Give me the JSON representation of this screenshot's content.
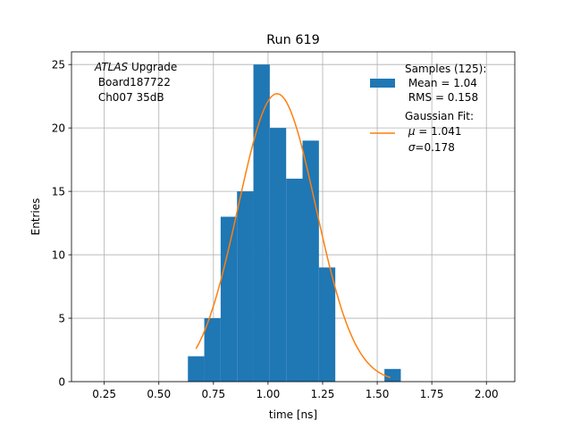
{
  "chart_data": {
    "type": "bar",
    "title": "Run 619",
    "xlabel": "time [ns]",
    "ylabel": "Entries",
    "xlim": [
      0.1,
      2.13
    ],
    "ylim": [
      0,
      26
    ],
    "grid": true,
    "xticks": [
      "0.25",
      "0.50",
      "0.75",
      "1.00",
      "1.25",
      "1.50",
      "1.75",
      "2.00"
    ],
    "xtick_values": [
      0.25,
      0.5,
      0.75,
      1.0,
      1.25,
      1.5,
      1.75,
      2.0
    ],
    "yticks": [
      "0",
      "5",
      "10",
      "15",
      "20",
      "25"
    ],
    "ytick_values": [
      0,
      5,
      10,
      15,
      20,
      25
    ],
    "histogram": {
      "color": "#1f77b4",
      "bin_edges": [
        0.633,
        0.708,
        0.783,
        0.858,
        0.933,
        1.008,
        1.083,
        1.158,
        1.233,
        1.308,
        1.383,
        1.458,
        1.533,
        1.608
      ],
      "counts": [
        2,
        5,
        13,
        15,
        25,
        20,
        16,
        19,
        9,
        0,
        0,
        0,
        1
      ]
    },
    "fit_curve": {
      "color": "#ff7f0e",
      "function": "gaussian",
      "mu": 1.041,
      "sigma": 0.178,
      "amplitude": 22.7,
      "x_range": [
        0.67,
        1.56
      ]
    },
    "annotation": {
      "italic": "ATLAS",
      "suffix": " Upgrade",
      "line2": " Board187722",
      "line3": " Ch007 35dB"
    },
    "legend": {
      "location": "top-right",
      "samples": {
        "line1": "Samples (125):",
        "line2": " Mean = 1.04",
        "line3": " RMS = 0.158"
      },
      "fit": {
        "line1": "Gaussian Fit:",
        "line2_value": " = 1.041",
        "line3_value": "=0.178"
      }
    }
  }
}
